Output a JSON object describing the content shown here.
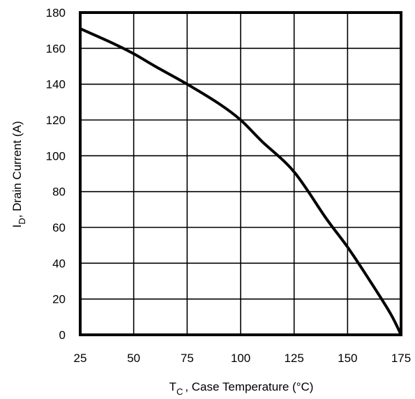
{
  "chart_data": {
    "type": "line",
    "xlabel_main": "T",
    "xlabel_sub": "C",
    "xlabel_rest": ", Case Temperature (°C)",
    "ylabel_main": "I",
    "ylabel_sub": "D",
    "ylabel_rest": ",  Drain Current (A)",
    "xlim": [
      25,
      175
    ],
    "ylim": [
      0,
      180
    ],
    "x_ticks": [
      "25",
      "50",
      "75",
      "100",
      "125",
      "150",
      "175"
    ],
    "y_ticks": [
      "0",
      "20",
      "40",
      "60",
      "80",
      "100",
      "120",
      "140",
      "160",
      "180"
    ],
    "grid": true,
    "series": [
      {
        "x": [
          25,
          40,
          50,
          60,
          75,
          90,
          100,
          110,
          125,
          140,
          150,
          160,
          170,
          175
        ],
        "y": [
          171,
          163,
          157,
          150,
          140,
          129,
          120,
          108,
          91,
          65,
          49,
          31,
          12,
          0
        ]
      }
    ]
  }
}
